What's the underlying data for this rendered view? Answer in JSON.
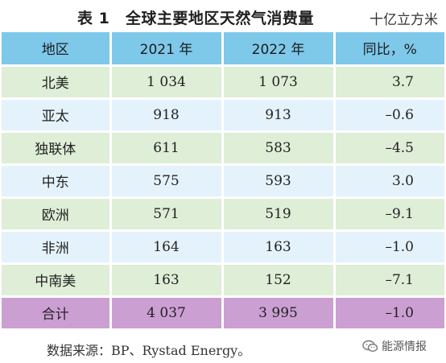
{
  "title": "表 1　全球主要地区天然气消费量",
  "unit": "十亿立方米",
  "table": {
    "headers": [
      "地区",
      "2021 年",
      "2022 年",
      "同比，%"
    ],
    "rows": [
      {
        "region": "北美",
        "y2021": "1 034",
        "y2022": "1 073",
        "change": "3.7"
      },
      {
        "region": "亚太",
        "y2021": "918",
        "y2022": "913",
        "change": "–0.6"
      },
      {
        "region": "独联体",
        "y2021": "611",
        "y2022": "583",
        "change": "–4.5"
      },
      {
        "region": "中东",
        "y2021": "575",
        "y2022": "593",
        "change": "3.0"
      },
      {
        "region": "欧洲",
        "y2021": "571",
        "y2022": "519",
        "change": "–9.1"
      },
      {
        "region": "非洲",
        "y2021": "164",
        "y2022": "163",
        "change": "–1.0"
      },
      {
        "region": "中南美",
        "y2021": "163",
        "y2022": "152",
        "change": "–7.1"
      }
    ],
    "total": {
      "region": "合计",
      "y2021": "4 037",
      "y2022": "3 995",
      "change": "–1.0"
    }
  },
  "source": "数据来源：BP、Rystad Energy。",
  "watermark": {
    "icon": "wechat-icon",
    "text": "能源情报"
  },
  "colors": {
    "header_bg": "#7ec8ea",
    "row_green": "#dfeed6",
    "row_blue": "#e4f2fb",
    "total_bg": "#cc9fd3"
  }
}
